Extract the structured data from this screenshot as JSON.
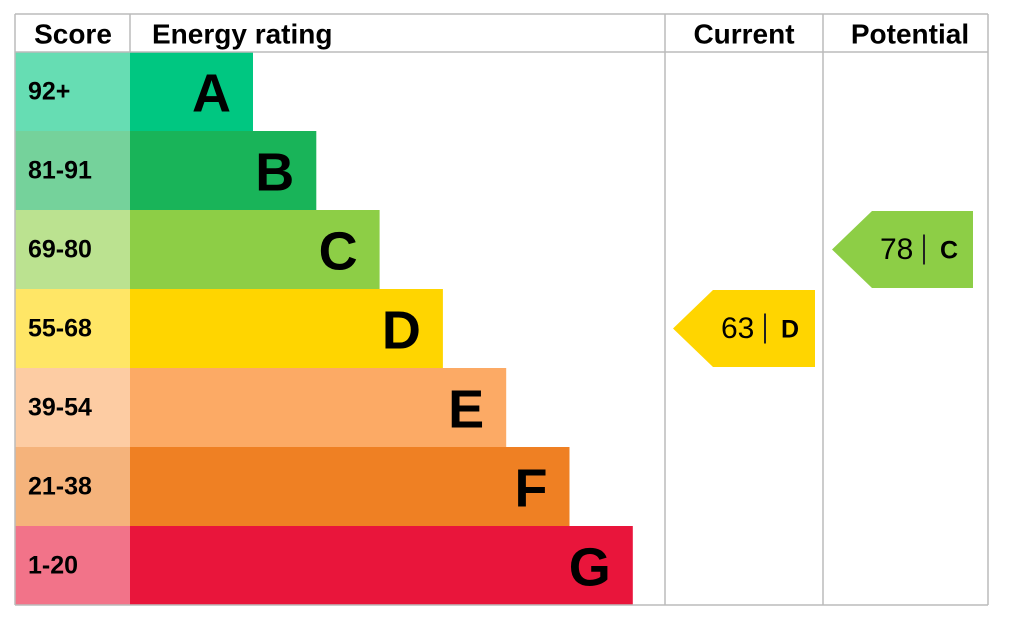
{
  "header": {
    "score": "Score",
    "rating": "Energy rating",
    "current": "Current",
    "potential": "Potential"
  },
  "bands": [
    {
      "range": "92+",
      "letter": "A",
      "color": "#00c781"
    },
    {
      "range": "81-91",
      "letter": "B",
      "color": "#19b459"
    },
    {
      "range": "69-80",
      "letter": "C",
      "color": "#8dce46"
    },
    {
      "range": "55-68",
      "letter": "D",
      "color": "#ffd500"
    },
    {
      "range": "39-54",
      "letter": "E",
      "color": "#fcaa65"
    },
    {
      "range": "21-38",
      "letter": "F",
      "color": "#ef8023"
    },
    {
      "range": "1-20",
      "letter": "G",
      "color": "#e9153b"
    }
  ],
  "current": {
    "score": 63,
    "letter": "D"
  },
  "potential": {
    "score": 78,
    "letter": "C"
  }
}
